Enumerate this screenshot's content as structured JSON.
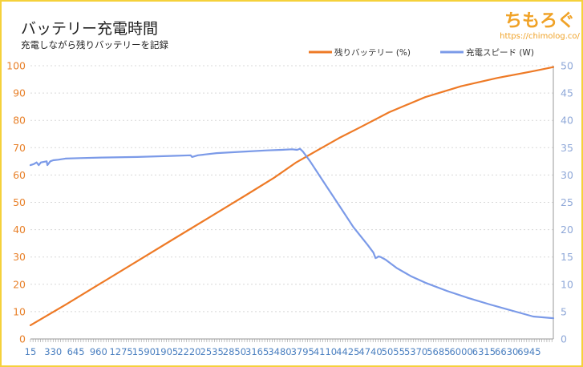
{
  "header": {
    "title": "バッテリー充電時間",
    "subtitle": "充電しながら残りバッテリーを記録",
    "brand": "ちもろぐ",
    "brand_url": "https://chimolog.co/"
  },
  "colors": {
    "battery": "#ee7a26",
    "speed": "#7b9ae8",
    "grid": "#d8d8d8",
    "frame": "#f5d13b",
    "brand": "#f0a226"
  },
  "chart_data": {
    "type": "line",
    "legend_position": "top-right",
    "grid": true,
    "x": {
      "range": [
        15,
        7280
      ],
      "tick_step": 35,
      "tick_labels": [
        "15",
        "330",
        "645",
        "960",
        "1275",
        "1590",
        "1905",
        "2220",
        "2535",
        "2850",
        "3165",
        "3480",
        "3795",
        "4110",
        "4425",
        "4740",
        "5055",
        "5370",
        "5685",
        "6000",
        "6315",
        "6630",
        "6945"
      ]
    },
    "y_left": {
      "range": [
        0,
        100
      ],
      "ticks": [
        0,
        10,
        20,
        30,
        40,
        50,
        60,
        70,
        80,
        90,
        100
      ]
    },
    "y_right": {
      "range": [
        0,
        50
      ],
      "ticks": [
        0,
        5,
        10,
        15,
        20,
        25,
        30,
        35,
        40,
        45,
        50
      ]
    },
    "series": [
      {
        "name": "残りバッテリー (%)",
        "axis": "left",
        "x": [
          15,
          500,
          1000,
          1500,
          2000,
          2500,
          3000,
          3400,
          3700,
          4000,
          4300,
          4600,
          5000,
          5500,
          6000,
          6500,
          7000,
          7280
        ],
        "y": [
          5,
          12.5,
          20.5,
          28.5,
          36.5,
          44.5,
          52.5,
          59,
          64.5,
          69,
          73.5,
          77.5,
          83,
          88.5,
          92.5,
          95.5,
          98,
          99.5
        ]
      },
      {
        "name": "充電スピード (W)",
        "axis": "right",
        "x": [
          15,
          60,
          100,
          130,
          160,
          240,
          250,
          290,
          330,
          400,
          500,
          700,
          1000,
          1500,
          2000,
          2240,
          2260,
          2340,
          2600,
          3000,
          3300,
          3500,
          3650,
          3720,
          3760,
          3800,
          3900,
          4100,
          4300,
          4500,
          4700,
          4780,
          4810,
          4830,
          4850,
          4880,
          4950,
          5100,
          5300,
          5500,
          5800,
          6100,
          6400,
          6700,
          7000,
          7280
        ],
        "y": [
          31.8,
          32,
          32.3,
          31.8,
          32.3,
          32.5,
          31.8,
          32.5,
          32.7,
          32.8,
          33,
          33.1,
          33.2,
          33.3,
          33.5,
          33.6,
          33.3,
          33.6,
          34,
          34.3,
          34.5,
          34.6,
          34.7,
          34.6,
          34.8,
          34.3,
          32.5,
          28.5,
          24.5,
          20.5,
          17.2,
          15.8,
          14.8,
          14.9,
          15.1,
          15,
          14.5,
          13,
          11.5,
          10.3,
          8.8,
          7.5,
          6.3,
          5.2,
          4.1,
          3.8
        ]
      }
    ]
  }
}
